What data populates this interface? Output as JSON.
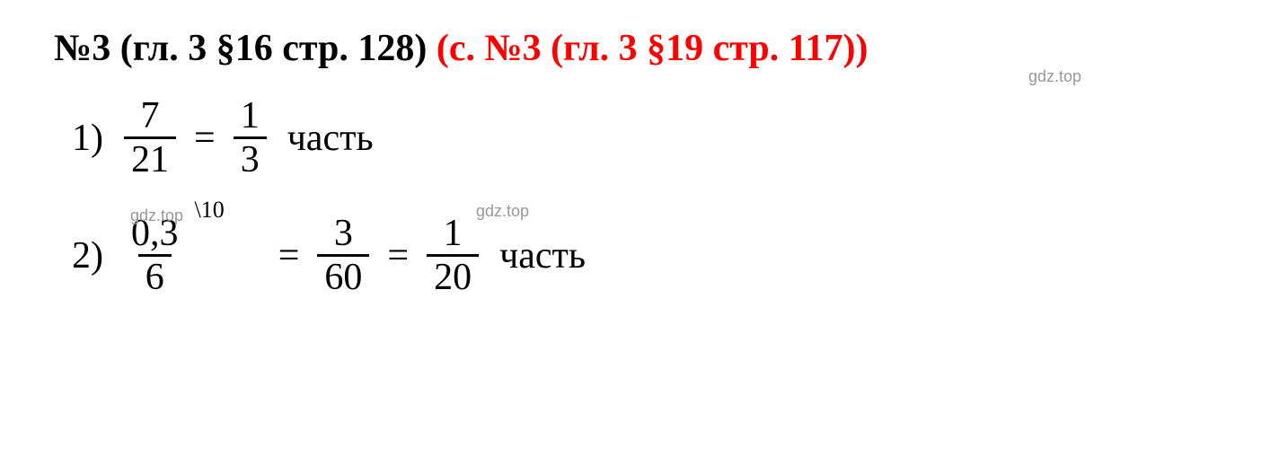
{
  "title": {
    "black_part": "№3 (гл. 3 §16 стр. 128)",
    "red_part": "(с. №3 (гл. 3 §19 стр. 117))"
  },
  "watermarks": {
    "wm1": "gdz.top",
    "wm2": "gdz.top",
    "wm3": "gdz.top"
  },
  "equations": {
    "eq1": {
      "number": "1)",
      "frac1_num": "7",
      "frac1_den": "21",
      "frac2_num": "1",
      "frac2_den": "3",
      "word": "часть"
    },
    "eq2": {
      "number": "2)",
      "frac1_num": "0,3",
      "frac1_den": "6",
      "superscript": "\\10",
      "frac2_num": "3",
      "frac2_den": "60",
      "frac3_num": "1",
      "frac3_den": "20",
      "word": "часть"
    }
  },
  "colors": {
    "black": "#000000",
    "red": "#ff0000",
    "watermark": "#999999",
    "background": "#ffffff"
  },
  "typography": {
    "title_fontsize": 42,
    "equation_fontsize": 42,
    "watermark_fontsize": 18,
    "font_family": "Times New Roman"
  }
}
